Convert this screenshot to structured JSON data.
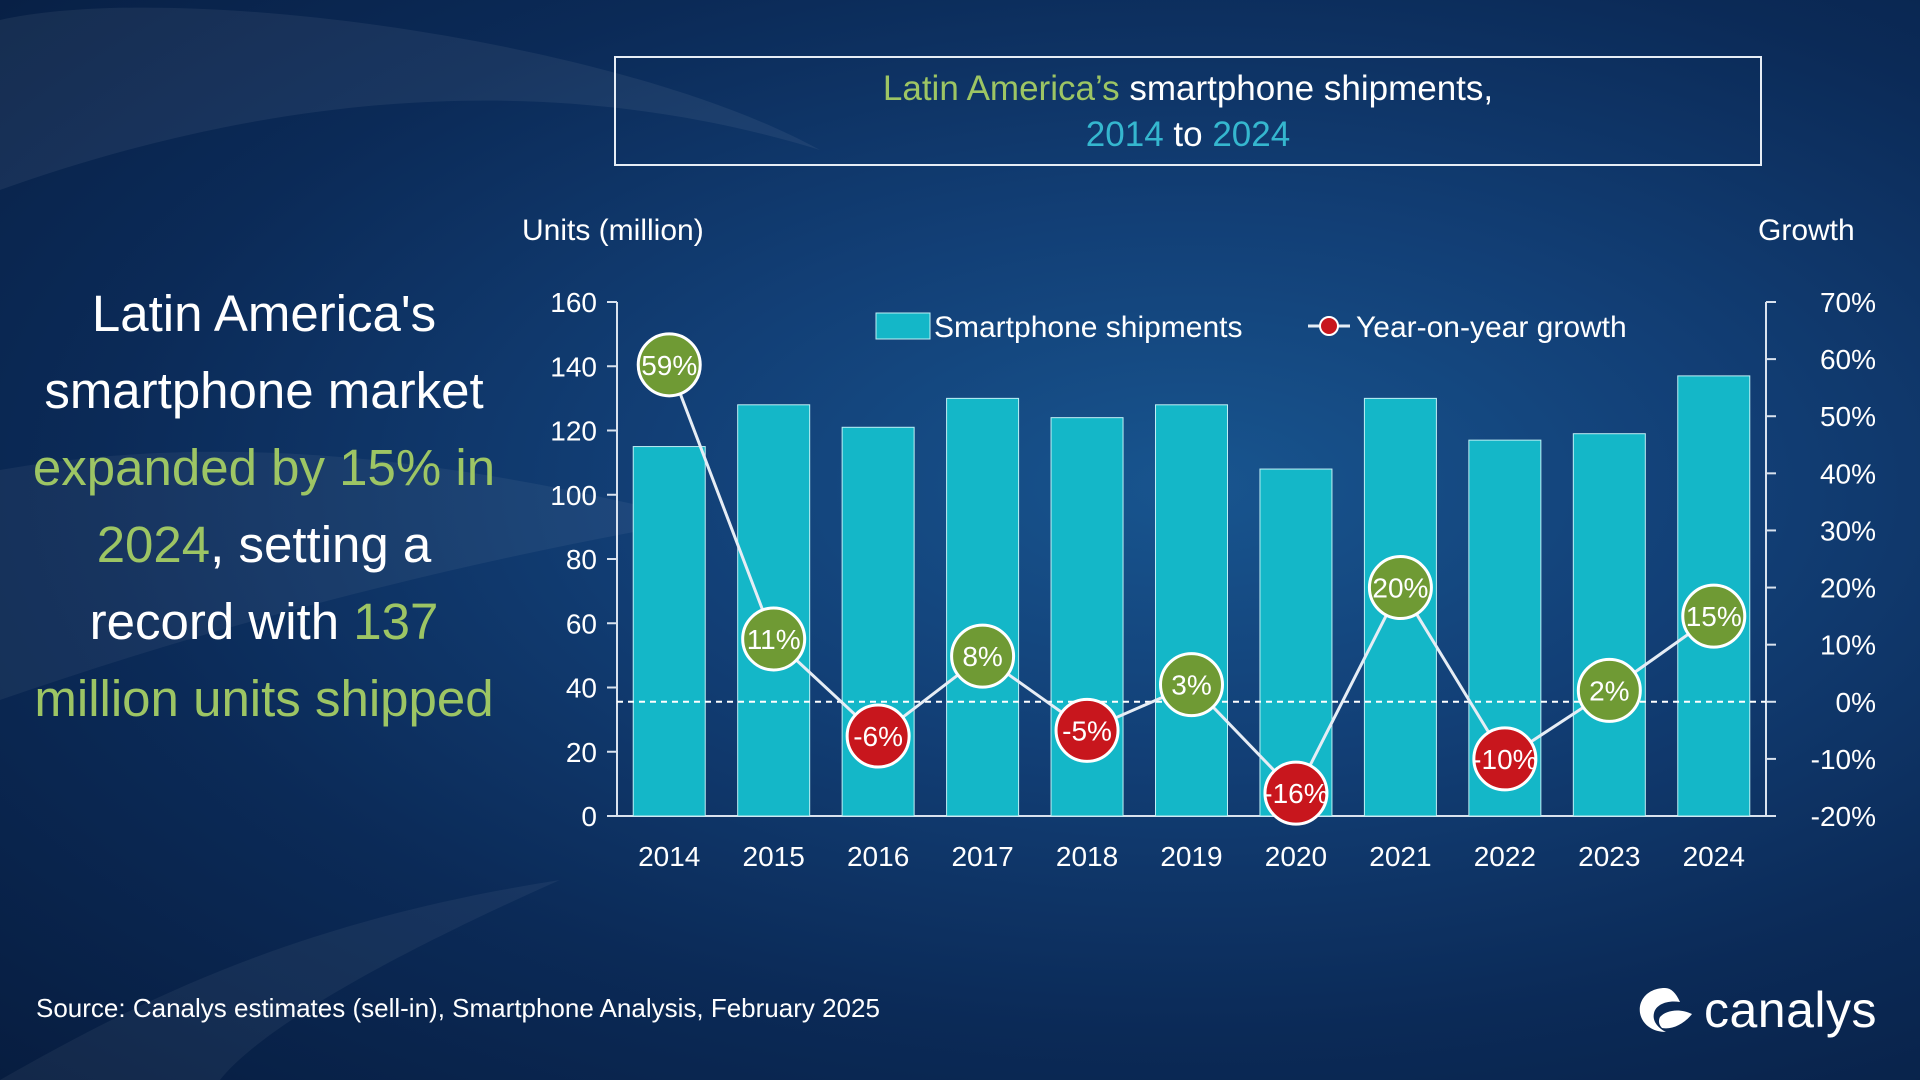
{
  "title": {
    "part1": "Latin America’s",
    "part2": " smartphone shipments,",
    "year_start": "2014",
    "to": " to ",
    "year_end": "2024"
  },
  "headline": {
    "text1": "Latin America's smartphone market ",
    "green1": "expanded by 15% in 2024",
    "text2": ", setting a record with ",
    "green2": "137 million units shipped"
  },
  "left_axis_title": "Units (million)",
  "right_axis_title": "Growth",
  "source": "Source: Canalys estimates (sell-in), Smartphone Analysis, February 2025",
  "logo": {
    "text": "canalys",
    "icon": "canalys-logo-icon"
  },
  "colors": {
    "bar": "#14b7c8",
    "positive": "#6f9a34",
    "negative": "#c8161d",
    "line": "#e6edf5",
    "text": "#ffffff"
  },
  "chart_data": {
    "type": "bar",
    "title": "Latin America’s smartphone shipments, 2014 to 2024",
    "categories": [
      "2014",
      "2015",
      "2016",
      "2017",
      "2018",
      "2019",
      "2020",
      "2021",
      "2022",
      "2023",
      "2024"
    ],
    "series": [
      {
        "name": "Smartphone shipments",
        "type": "bar",
        "axis": "left",
        "values": [
          115,
          128,
          121,
          130,
          124,
          128,
          108,
          130,
          117,
          119,
          137
        ]
      },
      {
        "name": "Year-on-year growth",
        "type": "line",
        "axis": "right",
        "values": [
          59,
          11,
          -6,
          8,
          -5,
          3,
          -16,
          20,
          -10,
          2,
          15
        ],
        "labels": [
          "59%",
          "11%",
          "-6%",
          "8%",
          "-5%",
          "3%",
          "-16%",
          "20%",
          "-10%",
          "2%",
          "15%"
        ]
      }
    ],
    "ylabel": "Units (million)",
    "ylim": [
      0,
      160
    ],
    "yticks": [
      "0",
      "20",
      "40",
      "60",
      "80",
      "100",
      "120",
      "140",
      "160"
    ],
    "y2label": "Growth",
    "y2lim": [
      -20,
      70
    ],
    "y2ticks": [
      "-20%",
      "-10%",
      "0%",
      "10%",
      "20%",
      "30%",
      "40%",
      "50%",
      "60%",
      "70%"
    ],
    "legend": [
      "Smartphone shipments",
      "Year-on-year growth"
    ],
    "legend_position": "top-right",
    "zero_line": "dashed"
  }
}
